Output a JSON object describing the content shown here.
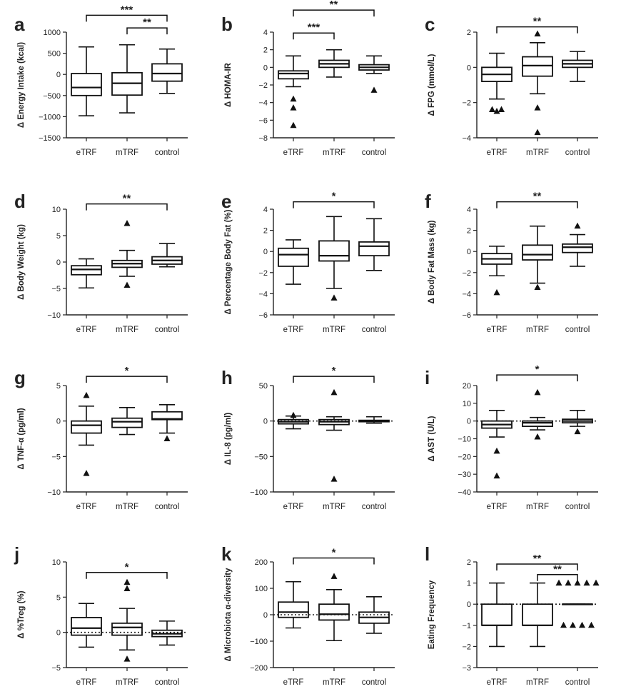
{
  "chart_data": [
    {
      "panel": "a",
      "type": "box",
      "ylabel": "Δ Energy Intake (kcal)",
      "categories": [
        "eTRF",
        "mTRF",
        "control"
      ],
      "ylim": [
        -1500,
        1000
      ],
      "yticks": [
        1000,
        500,
        0,
        -500,
        -1000,
        -1500
      ],
      "zero_line": false,
      "boxes": [
        {
          "min": -980,
          "q1": -500,
          "median": -310,
          "q3": 20,
          "max": 650,
          "outliers": []
        },
        {
          "min": -910,
          "q1": -490,
          "median": -210,
          "q3": 40,
          "max": 700,
          "outliers": []
        },
        {
          "min": -450,
          "q1": -160,
          "median": 20,
          "q3": 250,
          "max": 600,
          "outliers": []
        }
      ],
      "brackets": [
        {
          "from": 0,
          "to": 2,
          "label": "***",
          "y": 1400
        },
        {
          "from": 1,
          "to": 2,
          "label": "**",
          "y": 1100
        }
      ]
    },
    {
      "panel": "b",
      "type": "box",
      "ylabel": "Δ HOMA-IR",
      "categories": [
        "eTRF",
        "mTRF",
        "control"
      ],
      "ylim": [
        -8,
        4
      ],
      "yticks": [
        4,
        2,
        0,
        -2,
        -4,
        -6,
        -8
      ],
      "zero_line": false,
      "boxes": [
        {
          "min": -2.2,
          "q1": -1.3,
          "median": -0.7,
          "q3": -0.4,
          "max": 1.3,
          "outliers": [
            -3.6,
            -4.6,
            -6.6
          ]
        },
        {
          "min": -1.1,
          "q1": 0.0,
          "median": 0.4,
          "q3": 0.8,
          "max": 2.0,
          "outliers": []
        },
        {
          "min": -0.7,
          "q1": -0.3,
          "median": 0.0,
          "q3": 0.3,
          "max": 1.3,
          "outliers": [
            -2.6
          ]
        }
      ],
      "brackets": [
        {
          "from": 0,
          "to": 2,
          "label": "**",
          "y": 6.5
        },
        {
          "from": 0,
          "to": 1,
          "label": "***",
          "y": 3.9
        }
      ]
    },
    {
      "panel": "c",
      "type": "box",
      "ylabel": "Δ FPG (mmol/L)",
      "categories": [
        "eTRF",
        "mTRF",
        "control"
      ],
      "ylim": [
        -4,
        2
      ],
      "yticks": [
        2,
        0,
        -2,
        -4
      ],
      "zero_line": false,
      "boxes": [
        {
          "min": -1.8,
          "q1": -0.8,
          "median": -0.4,
          "q3": 0.0,
          "max": 0.8,
          "outliers": [
            -2.5,
            -2.4,
            -2.4
          ]
        },
        {
          "min": -1.5,
          "q1": -0.5,
          "median": 0.1,
          "q3": 0.6,
          "max": 1.4,
          "outliers": [
            1.9,
            -2.3,
            -3.7
          ]
        },
        {
          "min": -0.8,
          "q1": 0.0,
          "median": 0.2,
          "q3": 0.4,
          "max": 0.9,
          "outliers": []
        }
      ],
      "brackets": [
        {
          "from": 0,
          "to": 2,
          "label": "**",
          "y": 2.3
        }
      ]
    },
    {
      "panel": "d",
      "type": "box",
      "ylabel": "Δ Body Weight (kg)",
      "categories": [
        "eTRF",
        "mTRF",
        "control"
      ],
      "ylim": [
        -10,
        10
      ],
      "yticks": [
        10,
        5,
        0,
        -5,
        -10
      ],
      "zero_line": false,
      "boxes": [
        {
          "min": -4.9,
          "q1": -2.4,
          "median": -1.4,
          "q3": -0.7,
          "max": 0.6,
          "outliers": []
        },
        {
          "min": -2.7,
          "q1": -1.0,
          "median": -0.3,
          "q3": 0.3,
          "max": 2.2,
          "outliers": [
            7.3,
            -4.4
          ]
        },
        {
          "min": -0.9,
          "q1": -0.4,
          "median": 0.3,
          "q3": 1.0,
          "max": 3.5,
          "outliers": []
        }
      ],
      "brackets": [
        {
          "from": 0,
          "to": 2,
          "label": "**",
          "y": 11.0
        }
      ]
    },
    {
      "panel": "e",
      "type": "box",
      "ylabel": "Δ Percentage Body Fat (%)",
      "categories": [
        "eTRF",
        "mTRF",
        "control"
      ],
      "ylim": [
        -6,
        4
      ],
      "yticks": [
        4,
        2,
        0,
        -2,
        -4,
        -6
      ],
      "zero_line": false,
      "boxes": [
        {
          "min": -3.1,
          "q1": -1.4,
          "median": -0.3,
          "q3": 0.3,
          "max": 1.1,
          "outliers": []
        },
        {
          "min": -3.5,
          "q1": -0.9,
          "median": -0.4,
          "q3": 1.0,
          "max": 3.3,
          "outliers": [
            -4.4
          ]
        },
        {
          "min": -1.8,
          "q1": -0.4,
          "median": 0.5,
          "q3": 0.9,
          "max": 3.1,
          "outliers": []
        }
      ],
      "brackets": [
        {
          "from": 0,
          "to": 2,
          "label": "*",
          "y": 4.7
        }
      ]
    },
    {
      "panel": "f",
      "type": "box",
      "ylabel": "Δ Body Fat Mass (kg)",
      "categories": [
        "eTRF",
        "mTRF",
        "control"
      ],
      "ylim": [
        -6,
        4
      ],
      "yticks": [
        4,
        2,
        0,
        -2,
        -4,
        -6
      ],
      "zero_line": false,
      "boxes": [
        {
          "min": -2.3,
          "q1": -1.2,
          "median": -0.7,
          "q3": -0.2,
          "max": 0.5,
          "outliers": [
            -3.9
          ]
        },
        {
          "min": -3.0,
          "q1": -0.8,
          "median": -0.3,
          "q3": 0.6,
          "max": 2.4,
          "outliers": [
            -3.4
          ]
        },
        {
          "min": -1.4,
          "q1": -0.1,
          "median": 0.4,
          "q3": 0.7,
          "max": 1.6,
          "outliers": [
            2.4
          ]
        }
      ],
      "brackets": [
        {
          "from": 0,
          "to": 2,
          "label": "**",
          "y": 4.7
        }
      ]
    },
    {
      "panel": "g",
      "type": "box",
      "ylabel": "Δ TNF-α (pg/ml)",
      "categories": [
        "eTRF",
        "mTRF",
        "control"
      ],
      "ylim": [
        -10,
        5
      ],
      "yticks": [
        5,
        0,
        -5,
        -10
      ],
      "zero_line": false,
      "boxes": [
        {
          "min": -3.4,
          "q1": -1.7,
          "median": -0.6,
          "q3": 0.0,
          "max": 2.1,
          "outliers": [
            3.6,
            -7.4
          ]
        },
        {
          "min": -1.9,
          "q1": -0.9,
          "median": -0.1,
          "q3": 0.4,
          "max": 1.9,
          "outliers": []
        },
        {
          "min": -1.7,
          "q1": 0.2,
          "median": 0.3,
          "q3": 1.3,
          "max": 2.3,
          "outliers": [
            -2.5
          ]
        }
      ],
      "brackets": [
        {
          "from": 0,
          "to": 2,
          "label": "*",
          "y": 6.3
        }
      ]
    },
    {
      "panel": "h",
      "type": "box",
      "ylabel": "Δ IL-8 (pg/ml)",
      "categories": [
        "eTRF",
        "mTRF",
        "control"
      ],
      "ylim": [
        -100,
        50
      ],
      "yticks": [
        50,
        0,
        -50,
        -100
      ],
      "zero_line": true,
      "boxes": [
        {
          "min": -11,
          "q1": -4,
          "median": -1,
          "q3": 2,
          "max": 7,
          "outliers": [
            8
          ]
        },
        {
          "min": -13,
          "q1": -5,
          "median": -1,
          "q3": 2,
          "max": 6,
          "outliers": [
            40,
            -82
          ]
        },
        {
          "min": -3,
          "q1": -1,
          "median": 0,
          "q3": 1,
          "max": 6,
          "outliers": []
        }
      ],
      "brackets": [
        {
          "from": 0,
          "to": 2,
          "label": "*",
          "y": 63
        }
      ]
    },
    {
      "panel": "i",
      "type": "box",
      "ylabel": "Δ AST (U/L)",
      "categories": [
        "eTRF",
        "mTRF",
        "control"
      ],
      "ylim": [
        -40,
        20
      ],
      "yticks": [
        20,
        10,
        0,
        -10,
        -20,
        -30,
        -40
      ],
      "zero_line": true,
      "boxes": [
        {
          "min": -9,
          "q1": -4,
          "median": -2,
          "q3": 0,
          "max": 6,
          "outliers": [
            -17,
            -31
          ]
        },
        {
          "min": -5,
          "q1": -3,
          "median": -1,
          "q3": 0,
          "max": 2,
          "outliers": [
            16,
            -9
          ]
        },
        {
          "min": -3,
          "q1": -1,
          "median": 0,
          "q3": 1,
          "max": 6,
          "outliers": [
            -6
          ]
        }
      ],
      "brackets": [
        {
          "from": 0,
          "to": 2,
          "label": "*",
          "y": 26
        }
      ]
    },
    {
      "panel": "j",
      "type": "box",
      "ylabel": "Δ %Treg (%)",
      "categories": [
        "eTRF",
        "mTRF",
        "control"
      ],
      "ylim": [
        -5,
        10
      ],
      "yticks": [
        10,
        5,
        0,
        -5
      ],
      "zero_line": true,
      "boxes": [
        {
          "min": -2.1,
          "q1": -0.4,
          "median": 0.6,
          "q3": 2.1,
          "max": 4.1,
          "outliers": []
        },
        {
          "min": -2.5,
          "q1": -0.4,
          "median": 0.7,
          "q3": 1.3,
          "max": 3.4,
          "outliers": [
            7.1,
            6.2,
            -3.8
          ]
        },
        {
          "min": -1.8,
          "q1": -0.6,
          "median": -0.2,
          "q3": 0.3,
          "max": 1.6,
          "outliers": []
        }
      ],
      "brackets": [
        {
          "from": 0,
          "to": 2,
          "label": "*",
          "y": 8.5
        }
      ]
    },
    {
      "panel": "k",
      "type": "box",
      "ylabel": "Δ Microbiota α-diversity",
      "categories": [
        "eTRF",
        "mTRF",
        "control"
      ],
      "ylim": [
        -200,
        200
      ],
      "yticks": [
        200,
        100,
        0,
        -100,
        -200
      ],
      "zero_line": true,
      "boxes": [
        {
          "min": -50,
          "q1": -10,
          "median": 10,
          "q3": 48,
          "max": 125,
          "outliers": []
        },
        {
          "min": -98,
          "q1": -20,
          "median": 2,
          "q3": 40,
          "max": 95,
          "outliers": [
            145
          ]
        },
        {
          "min": -70,
          "q1": -32,
          "median": -10,
          "q3": 10,
          "max": 68,
          "outliers": []
        }
      ],
      "brackets": [
        {
          "from": 0,
          "to": 2,
          "label": "*",
          "y": 215
        }
      ]
    },
    {
      "panel": "l",
      "type": "box",
      "ylabel": "Eating Frequency",
      "categories": [
        "eTRF",
        "mTRF",
        "control"
      ],
      "ylim": [
        -3,
        2
      ],
      "yticks": [
        2,
        1,
        0,
        -1,
        -2,
        -3
      ],
      "zero_line": true,
      "boxes": [
        {
          "min": -2,
          "q1": -1,
          "median": -1,
          "q3": 0,
          "max": 1,
          "outliers": []
        },
        {
          "min": -2,
          "q1": -1,
          "median": -1,
          "q3": 0,
          "max": 1,
          "outliers": []
        },
        {
          "min": 0,
          "q1": 0,
          "median": 0,
          "q3": 0,
          "max": 0,
          "outliers": [
            1,
            1,
            1,
            1,
            1,
            -1,
            -1,
            -1,
            -1
          ]
        }
      ],
      "brackets": [
        {
          "from": 0,
          "to": 2,
          "label": "**",
          "y": 1.9
        },
        {
          "from": 1,
          "to": 2,
          "label": "**",
          "y": 1.4
        }
      ]
    }
  ]
}
